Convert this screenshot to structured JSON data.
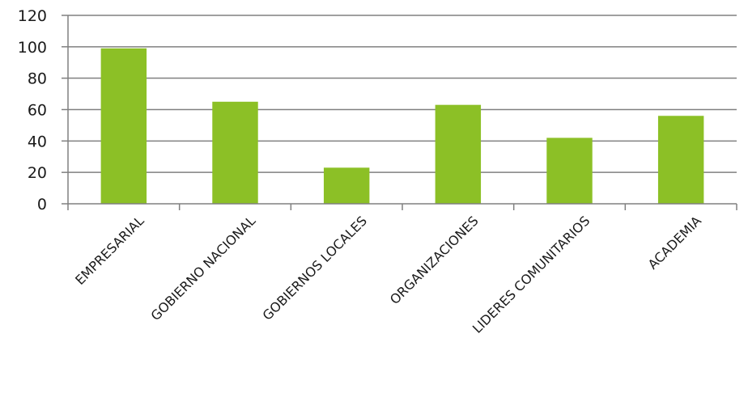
{
  "chart_data": {
    "type": "bar",
    "categories": [
      "EMPRESARIAL",
      "GOBIERNO NACIONAL",
      "GOBIERNOS LOCALES",
      "ORGANIZACIONES",
      "LIDERES COMUNITARIOS",
      "ACADEMIA"
    ],
    "values": [
      99,
      65,
      23,
      63,
      42,
      56
    ],
    "title": "",
    "xlabel": "",
    "ylabel": "",
    "ylim": [
      0,
      120
    ],
    "yticks": [
      0,
      20,
      40,
      60,
      80,
      100,
      120
    ],
    "grid": true,
    "legend": "none",
    "bar_color": "#8cc026",
    "grid_color": "#808080"
  }
}
